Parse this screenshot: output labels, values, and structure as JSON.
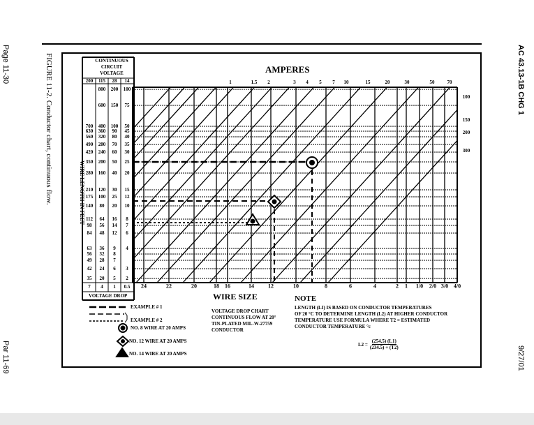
{
  "page": {
    "left_top": "Page 11-30",
    "left_bottom": "Par 11-69",
    "right_top": "AC 43.13-1B CHG 1",
    "right_bottom": "9/27/01",
    "caption": "FIGURE 11-2. Conductor chart, continuous flow."
  },
  "table": {
    "header": "CONTINUOUS CIRCUIT VOLTAGE",
    "voltages": [
      "200",
      "115",
      "28",
      "14"
    ],
    "rows": [
      [
        "",
        "800",
        "200",
        "100"
      ],
      [
        "",
        "600",
        "150",
        "75"
      ],
      [
        "700",
        "400",
        "100",
        "50"
      ],
      [
        "630",
        "360",
        "90",
        "45"
      ],
      [
        "560",
        "320",
        "80",
        "40"
      ],
      [
        "490",
        "280",
        "70",
        "35"
      ],
      [
        "420",
        "240",
        "60",
        "30"
      ],
      [
        "350",
        "200",
        "50",
        "25"
      ],
      [
        "280",
        "160",
        "40",
        "20"
      ],
      [
        "210",
        "120",
        "30",
        "15"
      ],
      [
        "175",
        "100",
        "25",
        "12"
      ],
      [
        "140",
        "80",
        "20",
        "10"
      ],
      [
        "112",
        "64",
        "16",
        "8"
      ],
      [
        "98",
        "56",
        "14",
        "7"
      ],
      [
        "84",
        "48",
        "12",
        "6"
      ],
      [
        "63",
        "36",
        "9",
        "4"
      ],
      [
        "56",
        "32",
        "8",
        ""
      ],
      [
        "49",
        "28",
        "7",
        ""
      ],
      [
        "42",
        "24",
        "6",
        "3"
      ],
      [
        "35",
        "20",
        "5",
        "2"
      ]
    ],
    "drops": [
      "7",
      "4",
      "1",
      "0.5"
    ],
    "footer": "VOLTAGE DROP",
    "side_label": "WIRE LENGTH IN FEET"
  },
  "chart": {
    "amperes_title": "AMPERES",
    "amperes": [
      "1",
      "1.5",
      "2",
      "3",
      "4",
      "5",
      "7",
      "10",
      "15",
      "20",
      "30",
      "50",
      "70"
    ],
    "right_amps": [
      "100",
      "150",
      "200",
      "300"
    ],
    "wire_sizes": [
      "24",
      "22",
      "20",
      "18",
      "16",
      "14",
      "12",
      "10",
      "8",
      "6",
      "4",
      "2",
      "1",
      "1/0",
      "2/0",
      "3/0",
      "4/0"
    ],
    "wire_size_title": "WIRE SIZE"
  },
  "legend": {
    "example1": "EXAMPLE # 1",
    "example2": "EXAMPLE # 2",
    "no8": "NO. 8 WIRE AT 20 AMPS",
    "no12": "NO. 12 WIRE AT 20 AMPS",
    "no14": "NO. 14 WIRE AT 20 AMPS"
  },
  "desc": [
    "VOLTAGE DROP CHART",
    "CONTINUOUS FLOW AT 20°",
    "TIN-PLATED MIL-W-27759",
    "CONDUCTOR"
  ],
  "note": {
    "title": "NOTE",
    "lines": [
      "LENGTH (LI) IS BASED ON CONDUCTOR TEMPERATURES",
      "OF 20 °C TO DETERMINE LENGTH (L2) AT HIGHER CONDUCTOR",
      "TEMPERATURE USE FORMULA WHERE T2 = ESTIMATED",
      "CONDUCTOR TEMPERATURE °c"
    ],
    "formula_lhs": "L2 =",
    "formula_num": "(254.5) (L1)",
    "formula_den": "(234.5) + (T2)"
  }
}
